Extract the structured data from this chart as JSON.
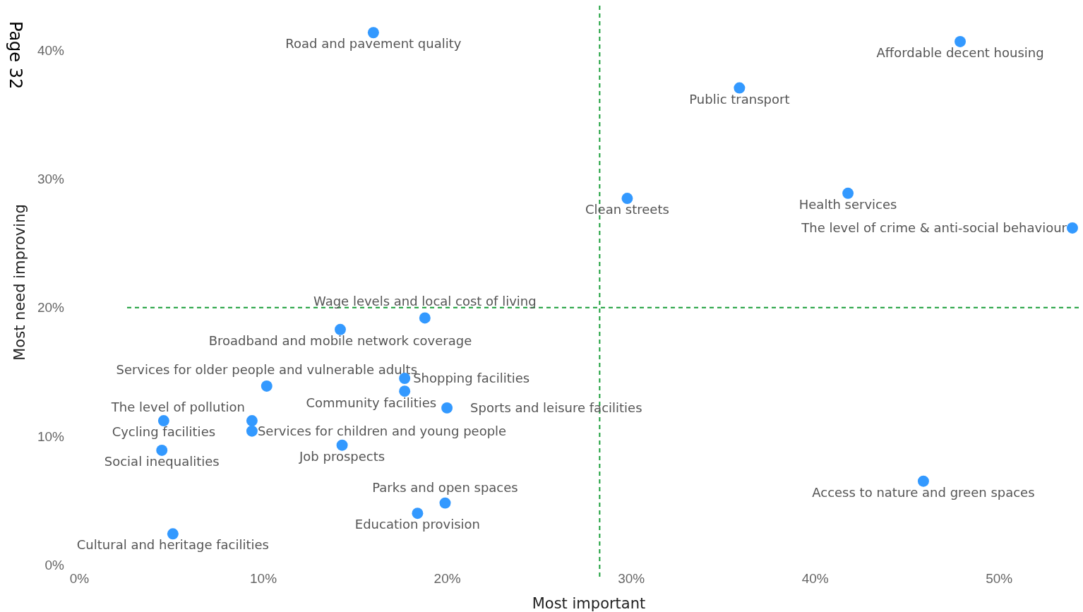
{
  "chart_data": {
    "type": "scatter",
    "xlabel": "Most important",
    "ylabel": "Most need improving",
    "xlim": [
      0,
      54.5
    ],
    "ylim": [
      0,
      43.5
    ],
    "xticks": [
      {
        "value": 0,
        "label": "0%"
      },
      {
        "value": 10,
        "label": "10%"
      },
      {
        "value": 20,
        "label": "20%"
      },
      {
        "value": 30,
        "label": "30%"
      },
      {
        "value": 40,
        "label": "40%"
      },
      {
        "value": 50,
        "label": "50%"
      }
    ],
    "yticks": [
      {
        "value": 0,
        "label": "0%"
      },
      {
        "value": 10,
        "label": "10%"
      },
      {
        "value": 20,
        "label": "20%"
      },
      {
        "value": 30,
        "label": "30%"
      },
      {
        "value": 40,
        "label": "40%"
      }
    ],
    "grid": false,
    "marker": "circle",
    "series": [
      {
        "color": "#3399ff",
        "x": [
          16,
          47.9,
          35.9,
          29.8,
          41.8,
          54,
          18.8,
          14.2,
          10.2,
          17.7,
          17.7,
          20,
          4.6,
          9.4,
          9.4,
          4.5,
          14.3,
          19.9,
          18.4,
          5.1,
          45.9
        ],
        "values": [
          41.4,
          40.7,
          37.1,
          28.5,
          28.9,
          26.2,
          19.2,
          18.3,
          13.9,
          14.5,
          13.5,
          12.2,
          11.2,
          11.2,
          10.4,
          8.9,
          9.3,
          4.8,
          4,
          2.4,
          6.5
        ]
      }
    ],
    "ref_lines": [
      {
        "axis": "x",
        "value": 28.3,
        "color": "#1a9e3a",
        "line_style": "dashed"
      },
      {
        "axis": "y",
        "value": 20,
        "color": "#1a9e3a",
        "line_style": "dashed"
      }
    ],
    "annotations": [
      {
        "text": "Road and pavement quality",
        "x": 16,
        "y": 41.4
      },
      {
        "text": "Affordable decent housing",
        "x": 47.9,
        "y": 40.7
      },
      {
        "text": "Public transport",
        "x": 35.9,
        "y": 37.1
      },
      {
        "text": "Clean streets",
        "x": 29.8,
        "y": 28.5
      },
      {
        "text": "Health services",
        "x": 41.8,
        "y": 28.9
      },
      {
        "text": "The level of crime & anti-social behaviour",
        "x": 54,
        "y": 26.2
      },
      {
        "text": "Wage levels and local cost of living",
        "x": 18.8,
        "y": 19.2
      },
      {
        "text": "Broadband and mobile network coverage",
        "x": 14.2,
        "y": 18.3
      },
      {
        "text": "Services for older people and vulnerable adults",
        "x": 10.2,
        "y": 13.9
      },
      {
        "text": "Shopping facilities",
        "x": 17.7,
        "y": 14.5
      },
      {
        "text": "Community facilities",
        "x": 17.7,
        "y": 13.5
      },
      {
        "text": "Sports and leisure facilities",
        "x": 20,
        "y": 12.2
      },
      {
        "text": "Cycling facilities",
        "x": 4.6,
        "y": 11.2
      },
      {
        "text": "The level of pollution",
        "x": 9.4,
        "y": 11.2
      },
      {
        "text": "Services for children and young people",
        "x": 9.4,
        "y": 10.4
      },
      {
        "text": "Social inequalities",
        "x": 4.5,
        "y": 8.9
      },
      {
        "text": "Job prospects",
        "x": 14.3,
        "y": 9.3
      },
      {
        "text": "Parks and open spaces",
        "x": 19.9,
        "y": 4.8
      },
      {
        "text": "Education provision",
        "x": 18.4,
        "y": 4
      },
      {
        "text": "Cultural and heritage facilities",
        "x": 5.1,
        "y": 2.4
      },
      {
        "text": "Access to nature and green spaces",
        "x": 45.9,
        "y": 6.5
      },
      "Page 32"
    ]
  }
}
